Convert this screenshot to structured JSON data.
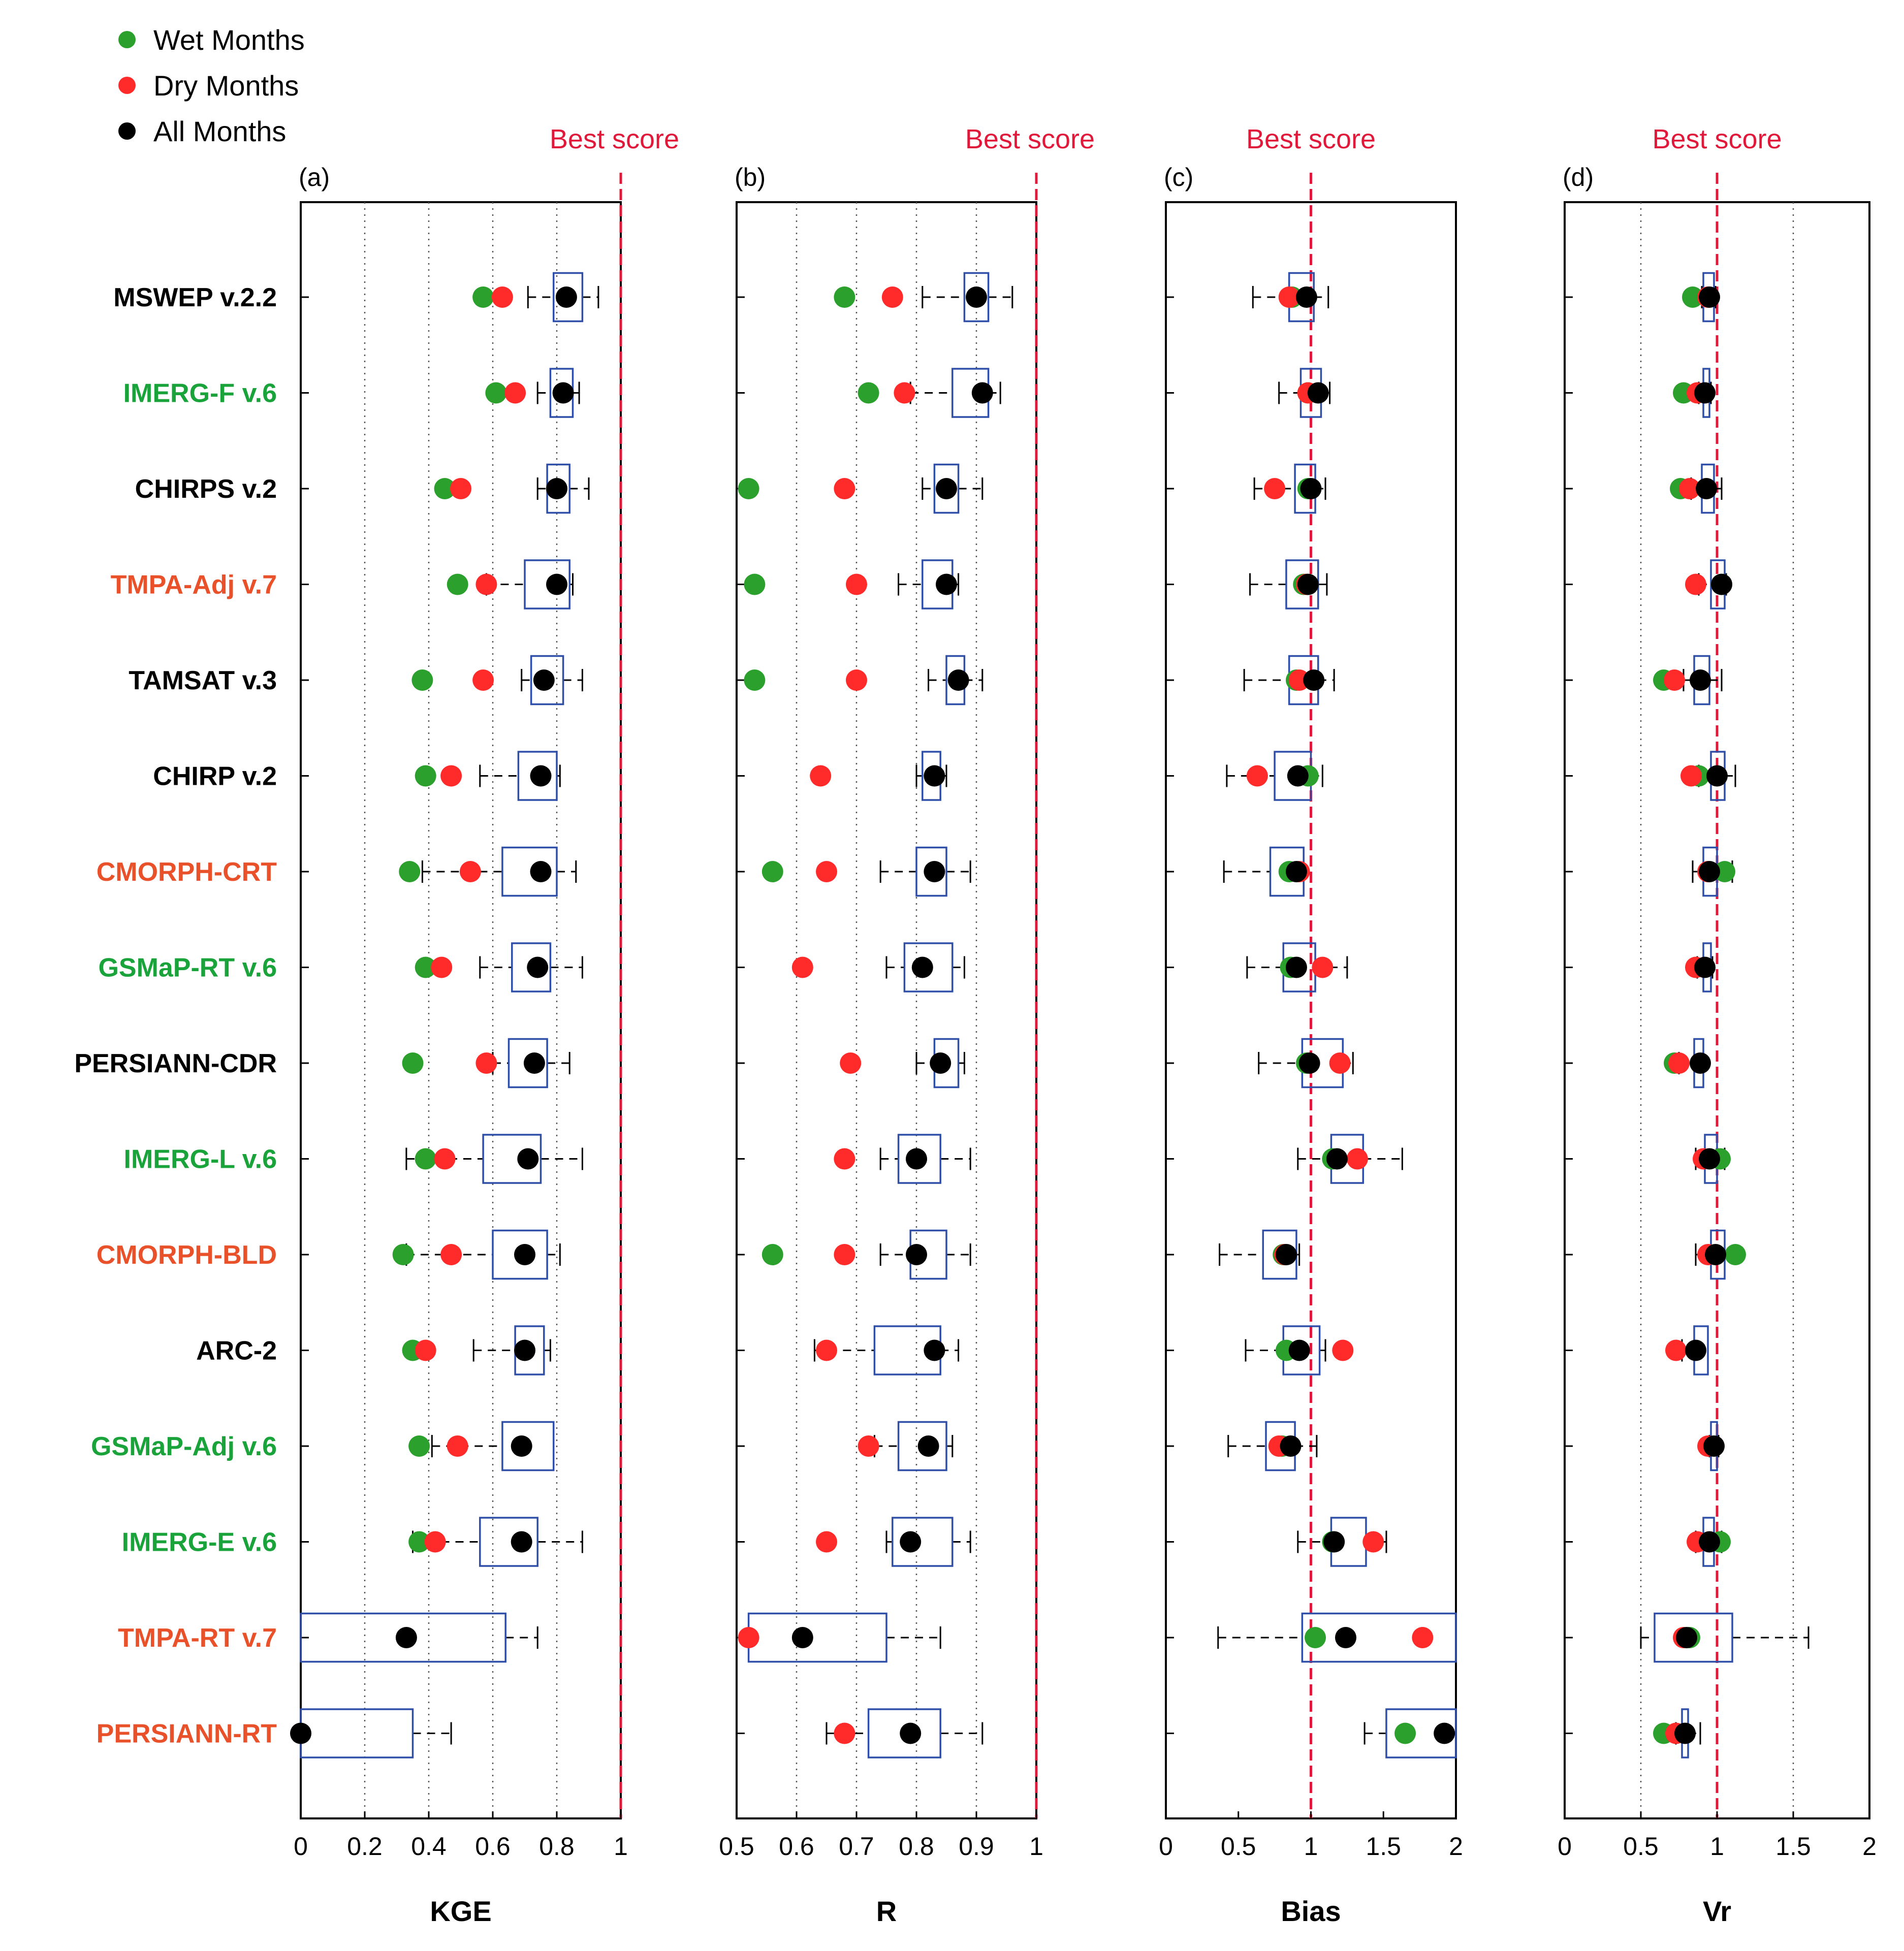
{
  "chart_data": {
    "type": "box-dot",
    "legend": [
      {
        "label": "Wet Months",
        "color": "#2ca02c"
      },
      {
        "label": "Dry Months",
        "color": "#ff2a2a"
      },
      {
        "label": "All Months",
        "color": "#000000"
      }
    ],
    "legend_position": "top-left",
    "best_score_label": "Best score",
    "products": [
      {
        "name": "MSWEP v.2.2",
        "color": "#000000"
      },
      {
        "name": "IMERG-F v.6",
        "color": "#1aa33a"
      },
      {
        "name": "CHIRPS v.2",
        "color": "#000000"
      },
      {
        "name": "TMPA-Adj v.7",
        "color": "#e8512a"
      },
      {
        "name": "TAMSAT v.3",
        "color": "#000000"
      },
      {
        "name": "CHIRP v.2",
        "color": "#000000"
      },
      {
        "name": "CMORPH-CRT",
        "color": "#e8512a"
      },
      {
        "name": "GSMaP-RT v.6",
        "color": "#1aa33a"
      },
      {
        "name": "PERSIANN-CDR",
        "color": "#000000"
      },
      {
        "name": "IMERG-L v.6",
        "color": "#1aa33a"
      },
      {
        "name": "CMORPH-BLD",
        "color": "#e8512a"
      },
      {
        "name": "ARC-2",
        "color": "#000000"
      },
      {
        "name": "GSMaP-Adj v.6",
        "color": "#1aa33a"
      },
      {
        "name": "IMERG-E v.6",
        "color": "#1aa33a"
      },
      {
        "name": "TMPA-RT v.7",
        "color": "#e8512a"
      },
      {
        "name": "PERSIANN-RT",
        "color": "#e8512a"
      }
    ],
    "panels": [
      {
        "label": "(a)",
        "xlabel": "KGE",
        "xlim": [
          0,
          1
        ],
        "best": 1,
        "ticks": [
          0,
          0.2,
          0.4,
          0.6,
          0.8
        ],
        "best_tick": "1",
        "grid": [
          0.2,
          0.4,
          0.6,
          0.8
        ],
        "wet": [
          0.57,
          0.61,
          0.45,
          0.49,
          0.38,
          0.39,
          0.34,
          0.39,
          0.35,
          0.39,
          0.32,
          0.35,
          0.37,
          0.37,
          null,
          null
        ],
        "dry": [
          0.63,
          0.67,
          0.5,
          0.58,
          0.57,
          0.47,
          0.53,
          0.44,
          0.58,
          0.45,
          0.47,
          0.39,
          0.49,
          0.42,
          null,
          null
        ],
        "all": [
          0.83,
          0.82,
          0.8,
          0.8,
          0.76,
          0.75,
          0.75,
          0.74,
          0.73,
          0.71,
          0.7,
          0.7,
          0.69,
          0.69,
          0.33,
          0.0
        ],
        "boxes": [
          [
            0.79,
            0.88,
            0.71,
            0.93
          ],
          [
            0.78,
            0.85,
            0.74,
            0.87
          ],
          [
            0.77,
            0.84,
            0.74,
            0.9
          ],
          [
            0.7,
            0.84,
            0.58,
            0.85
          ],
          [
            0.72,
            0.82,
            0.69,
            0.88
          ],
          [
            0.68,
            0.8,
            0.56,
            0.81
          ],
          [
            0.63,
            0.8,
            0.38,
            0.86
          ],
          [
            0.66,
            0.78,
            0.56,
            0.88
          ],
          [
            0.65,
            0.77,
            0.6,
            0.84
          ],
          [
            0.57,
            0.75,
            0.33,
            0.88
          ],
          [
            0.6,
            0.77,
            0.33,
            0.81
          ],
          [
            0.67,
            0.76,
            0.54,
            0.78
          ],
          [
            0.63,
            0.79,
            0.41,
            0.79
          ],
          [
            0.56,
            0.74,
            0.35,
            0.88
          ],
          [
            0.0,
            0.64,
            0.0,
            0.74
          ],
          [
            0.0,
            0.35,
            0.0,
            0.47
          ]
        ]
      },
      {
        "label": "(b)",
        "xlabel": "R",
        "xlim": [
          0.5,
          1
        ],
        "best": 1,
        "ticks": [
          0.5,
          0.6,
          0.7,
          0.8,
          0.9
        ],
        "best_tick": "1",
        "grid": [
          0.6,
          0.7,
          0.8,
          0.9
        ],
        "wet": [
          0.68,
          0.72,
          0.52,
          0.53,
          0.53,
          null,
          0.56,
          null,
          null,
          null,
          0.56,
          null,
          null,
          null,
          null,
          null
        ],
        "dry": [
          0.76,
          0.78,
          0.68,
          0.7,
          0.7,
          0.64,
          0.65,
          0.61,
          0.69,
          0.68,
          0.68,
          0.65,
          0.72,
          0.65,
          0.52,
          0.68
        ],
        "all": [
          0.9,
          0.91,
          0.85,
          0.85,
          0.87,
          0.83,
          0.83,
          0.81,
          0.84,
          0.8,
          0.8,
          0.83,
          0.82,
          0.79,
          0.61,
          0.79
        ],
        "boxes": [
          [
            0.88,
            0.92,
            0.81,
            0.96
          ],
          [
            0.86,
            0.92,
            0.79,
            0.94
          ],
          [
            0.83,
            0.87,
            0.81,
            0.91
          ],
          [
            0.81,
            0.86,
            0.77,
            0.87
          ],
          [
            0.85,
            0.88,
            0.82,
            0.91
          ],
          [
            0.81,
            0.84,
            0.8,
            0.85
          ],
          [
            0.8,
            0.85,
            0.74,
            0.89
          ],
          [
            0.78,
            0.86,
            0.75,
            0.88
          ],
          [
            0.83,
            0.87,
            0.8,
            0.88
          ],
          [
            0.77,
            0.84,
            0.74,
            0.89
          ],
          [
            0.79,
            0.85,
            0.74,
            0.89
          ],
          [
            0.73,
            0.84,
            0.63,
            0.87
          ],
          [
            0.77,
            0.85,
            0.73,
            0.86
          ],
          [
            0.76,
            0.86,
            0.75,
            0.89
          ],
          [
            0.52,
            0.75,
            0.52,
            0.84
          ],
          [
            0.72,
            0.84,
            0.65,
            0.91
          ]
        ]
      },
      {
        "label": "(c)",
        "xlabel": "Bias",
        "xlim": [
          0,
          2
        ],
        "best": 1,
        "ticks": [
          0,
          0.5,
          1.5,
          2
        ],
        "best_tick": "1",
        "grid": [],
        "wet": [
          0.87,
          0.98,
          0.98,
          0.95,
          0.9,
          0.98,
          0.85,
          0.86,
          0.97,
          1.15,
          0.81,
          0.83,
          0.8,
          1.15,
          1.03,
          1.65
        ],
        "dry": [
          0.85,
          0.98,
          0.75,
          0.97,
          0.92,
          0.63,
          0.92,
          1.08,
          1.2,
          1.32,
          0.82,
          1.22,
          0.78,
          1.43,
          1.77,
          null
        ],
        "all": [
          0.97,
          1.05,
          1.0,
          0.98,
          1.02,
          0.91,
          0.9,
          0.9,
          0.99,
          1.18,
          0.83,
          0.92,
          0.86,
          1.16,
          1.24,
          1.92
        ],
        "boxes": [
          [
            0.85,
            1.02,
            0.6,
            1.12
          ],
          [
            0.93,
            1.07,
            0.78,
            1.13
          ],
          [
            0.89,
            1.03,
            0.61,
            1.1
          ],
          [
            0.83,
            1.05,
            0.58,
            1.11
          ],
          [
            0.85,
            1.05,
            0.54,
            1.16
          ],
          [
            0.75,
            1.0,
            0.42,
            1.08
          ],
          [
            0.72,
            0.95,
            0.4,
            0.95
          ],
          [
            0.81,
            1.03,
            0.56,
            1.25
          ],
          [
            0.94,
            1.22,
            0.64,
            1.29
          ],
          [
            1.14,
            1.36,
            0.91,
            1.63
          ],
          [
            0.67,
            0.9,
            0.37,
            0.92
          ],
          [
            0.81,
            1.06,
            0.55,
            1.1
          ],
          [
            0.69,
            0.89,
            0.43,
            1.04
          ],
          [
            1.14,
            1.38,
            0.91,
            1.52
          ],
          [
            0.94,
            2.0,
            0.36,
            2.0
          ],
          [
            1.52,
            2.0,
            1.37,
            2.0
          ]
        ]
      },
      {
        "label": "(d)",
        "xlabel": "Vr",
        "xlim": [
          0,
          2
        ],
        "best": 1,
        "ticks": [
          0,
          0.5,
          1.5,
          2
        ],
        "best_tick": "1",
        "grid": [
          0.5,
          1.5
        ],
        "wet": [
          0.84,
          0.78,
          0.76,
          1.03,
          0.65,
          0.88,
          1.05,
          null,
          0.72,
          1.02,
          1.12,
          null,
          null,
          1.02,
          0.82,
          0.65
        ],
        "dry": [
          0.94,
          0.87,
          0.82,
          0.86,
          0.72,
          0.83,
          0.94,
          0.86,
          0.75,
          0.91,
          0.94,
          0.73,
          0.94,
          0.87,
          0.78,
          0.73
        ],
        "all": [
          0.95,
          0.92,
          0.93,
          1.03,
          0.89,
          1.0,
          0.95,
          0.92,
          0.89,
          0.95,
          0.99,
          0.86,
          0.98,
          0.95,
          0.8,
          0.79
        ],
        "boxes": [
          [
            0.91,
            0.98,
            0.9,
            0.99
          ],
          [
            0.91,
            0.95,
            0.88,
            0.96
          ],
          [
            0.9,
            0.98,
            0.83,
            1.03
          ],
          [
            0.96,
            1.05,
            0.88,
            1.06
          ],
          [
            0.85,
            0.95,
            0.78,
            1.03
          ],
          [
            0.96,
            1.05,
            0.88,
            1.12
          ],
          [
            0.91,
            1.0,
            0.84,
            1.1
          ],
          [
            0.91,
            0.96,
            0.87,
            0.97
          ],
          [
            0.85,
            0.91,
            0.75,
            0.91
          ],
          [
            0.92,
            1.0,
            0.86,
            1.05
          ],
          [
            0.96,
            1.05,
            0.86,
            1.05
          ],
          [
            0.85,
            0.94,
            0.77,
            0.94
          ],
          [
            0.96,
            1.0,
            0.95,
            1.01
          ],
          [
            0.91,
            0.98,
            0.86,
            1.03
          ],
          [
            0.59,
            1.1,
            0.5,
            1.6
          ],
          [
            0.77,
            0.81,
            0.73,
            0.89
          ]
        ]
      }
    ]
  }
}
